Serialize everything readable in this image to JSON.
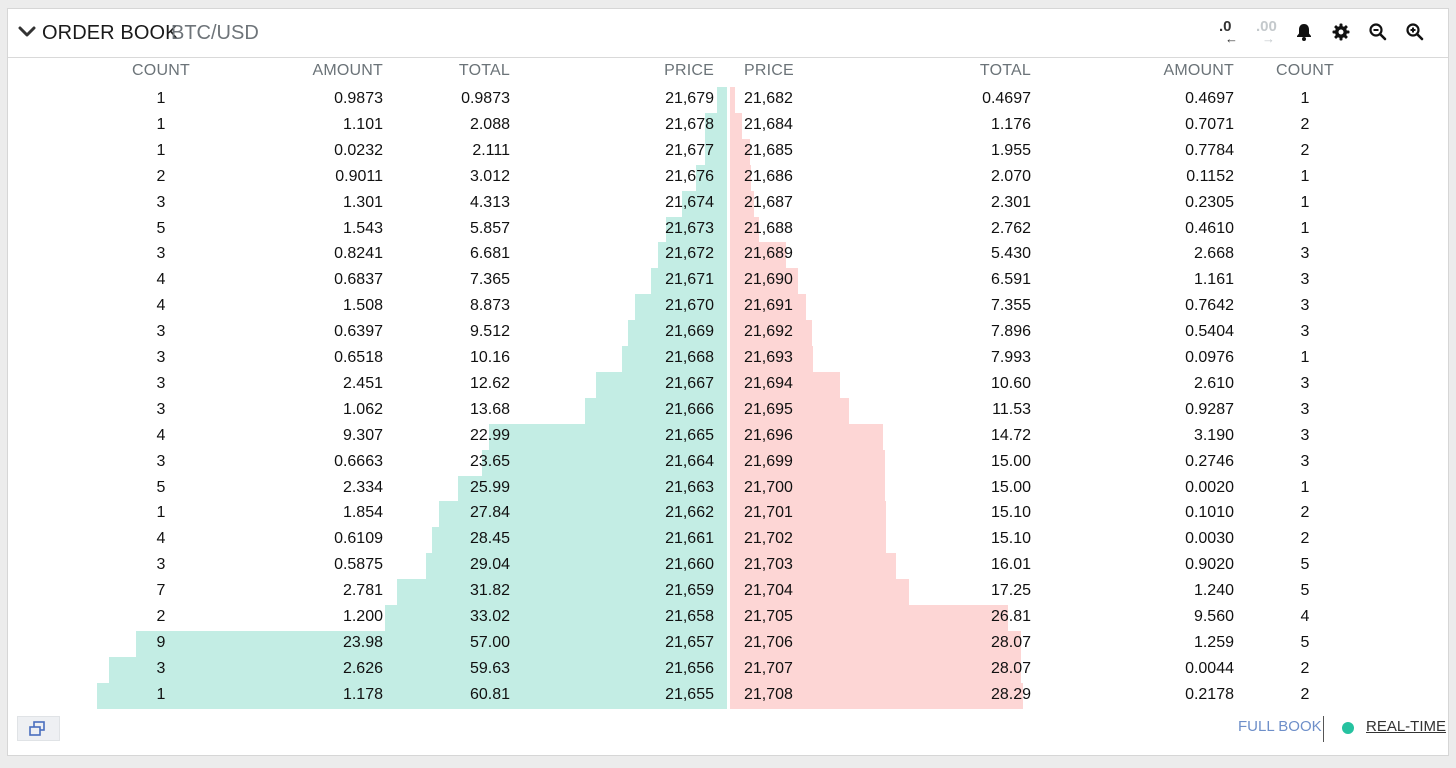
{
  "header": {
    "title": "ORDER BOOK",
    "pair": "BTC/USD",
    "precision_decrease": ".0",
    "precision_increase": ".00",
    "arrow_left": "←",
    "arrow_right": "→"
  },
  "columns": {
    "bids": [
      "COUNT",
      "AMOUNT",
      "TOTAL",
      "PRICE"
    ],
    "asks": [
      "PRICE",
      "TOTAL",
      "AMOUNT",
      "COUNT"
    ]
  },
  "max_total": 60.81,
  "bids": [
    {
      "count": "1",
      "amount": "0.9873",
      "total": "0.9873",
      "price": "21,679"
    },
    {
      "count": "1",
      "amount": "1.101",
      "total": "2.088",
      "price": "21,678"
    },
    {
      "count": "1",
      "amount": "0.0232",
      "total": "2.111",
      "price": "21,677"
    },
    {
      "count": "2",
      "amount": "0.9011",
      "total": "3.012",
      "price": "21,676"
    },
    {
      "count": "3",
      "amount": "1.301",
      "total": "4.313",
      "price": "21,674"
    },
    {
      "count": "5",
      "amount": "1.543",
      "total": "5.857",
      "price": "21,673"
    },
    {
      "count": "3",
      "amount": "0.8241",
      "total": "6.681",
      "price": "21,672"
    },
    {
      "count": "4",
      "amount": "0.6837",
      "total": "7.365",
      "price": "21,671"
    },
    {
      "count": "4",
      "amount": "1.508",
      "total": "8.873",
      "price": "21,670"
    },
    {
      "count": "3",
      "amount": "0.6397",
      "total": "9.512",
      "price": "21,669"
    },
    {
      "count": "3",
      "amount": "0.6518",
      "total": "10.16",
      "price": "21,668"
    },
    {
      "count": "3",
      "amount": "2.451",
      "total": "12.62",
      "price": "21,667"
    },
    {
      "count": "3",
      "amount": "1.062",
      "total": "13.68",
      "price": "21,666"
    },
    {
      "count": "4",
      "amount": "9.307",
      "total": "22.99",
      "price": "21,665"
    },
    {
      "count": "3",
      "amount": "0.6663",
      "total": "23.65",
      "price": "21,664"
    },
    {
      "count": "5",
      "amount": "2.334",
      "total": "25.99",
      "price": "21,663"
    },
    {
      "count": "1",
      "amount": "1.854",
      "total": "27.84",
      "price": "21,662"
    },
    {
      "count": "4",
      "amount": "0.6109",
      "total": "28.45",
      "price": "21,661"
    },
    {
      "count": "3",
      "amount": "0.5875",
      "total": "29.04",
      "price": "21,660"
    },
    {
      "count": "7",
      "amount": "2.781",
      "total": "31.82",
      "price": "21,659"
    },
    {
      "count": "2",
      "amount": "1.200",
      "total": "33.02",
      "price": "21,658"
    },
    {
      "count": "9",
      "amount": "23.98",
      "total": "57.00",
      "price": "21,657"
    },
    {
      "count": "3",
      "amount": "2.626",
      "total": "59.63",
      "price": "21,656"
    },
    {
      "count": "1",
      "amount": "1.178",
      "total": "60.81",
      "price": "21,655"
    }
  ],
  "asks": [
    {
      "price": "21,682",
      "total": "0.4697",
      "amount": "0.4697",
      "count": "1"
    },
    {
      "price": "21,684",
      "total": "1.176",
      "amount": "0.7071",
      "count": "2"
    },
    {
      "price": "21,685",
      "total": "1.955",
      "amount": "0.7784",
      "count": "2"
    },
    {
      "price": "21,686",
      "total": "2.070",
      "amount": "0.1152",
      "count": "1"
    },
    {
      "price": "21,687",
      "total": "2.301",
      "amount": "0.2305",
      "count": "1"
    },
    {
      "price": "21,688",
      "total": "2.762",
      "amount": "0.4610",
      "count": "1"
    },
    {
      "price": "21,689",
      "total": "5.430",
      "amount": "2.668",
      "count": "3"
    },
    {
      "price": "21,690",
      "total": "6.591",
      "amount": "1.161",
      "count": "3"
    },
    {
      "price": "21,691",
      "total": "7.355",
      "amount": "0.7642",
      "count": "3"
    },
    {
      "price": "21,692",
      "total": "7.896",
      "amount": "0.5404",
      "count": "3"
    },
    {
      "price": "21,693",
      "total": "7.993",
      "amount": "0.0976",
      "count": "1"
    },
    {
      "price": "21,694",
      "total": "10.60",
      "amount": "2.610",
      "count": "3"
    },
    {
      "price": "21,695",
      "total": "11.53",
      "amount": "0.9287",
      "count": "3"
    },
    {
      "price": "21,696",
      "total": "14.72",
      "amount": "3.190",
      "count": "3"
    },
    {
      "price": "21,699",
      "total": "15.00",
      "amount": "0.2746",
      "count": "3"
    },
    {
      "price": "21,700",
      "total": "15.00",
      "amount": "0.0020",
      "count": "1"
    },
    {
      "price": "21,701",
      "total": "15.10",
      "amount": "0.1010",
      "count": "2"
    },
    {
      "price": "21,702",
      "total": "15.10",
      "amount": "0.0030",
      "count": "2"
    },
    {
      "price": "21,703",
      "total": "16.01",
      "amount": "0.9020",
      "count": "5"
    },
    {
      "price": "21,704",
      "total": "17.25",
      "amount": "1.240",
      "count": "5"
    },
    {
      "price": "21,705",
      "total": "26.81",
      "amount": "9.560",
      "count": "4"
    },
    {
      "price": "21,706",
      "total": "28.07",
      "amount": "1.259",
      "count": "5"
    },
    {
      "price": "21,707",
      "total": "28.07",
      "amount": "0.0044",
      "count": "2"
    },
    {
      "price": "21,708",
      "total": "28.29",
      "amount": "0.2178",
      "count": "2"
    }
  ],
  "footer": {
    "full_book": "FULL BOOK",
    "realtime": "REAL-TIME"
  },
  "colors": {
    "bid_bar": "#c3ede4",
    "ask_bar": "#fdd6d5",
    "realtime_dot": "#26c2a0",
    "link": "#6e8fc9"
  }
}
